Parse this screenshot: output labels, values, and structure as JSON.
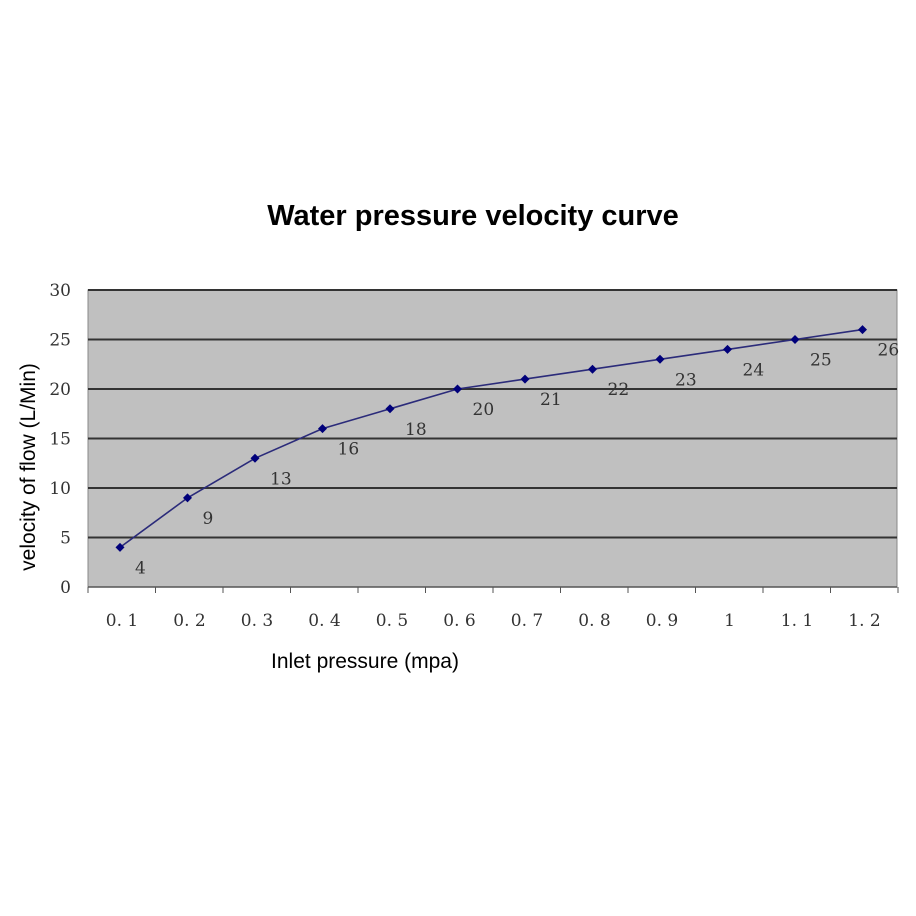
{
  "chart_data": {
    "type": "line",
    "title": "Water pressure velocity curve",
    "xlabel": "Inlet pressure (mpa)",
    "ylabel": "velocity of flow (L/Min)",
    "categories": [
      "0.1",
      "0.2",
      "0.3",
      "0.4",
      "0.5",
      "0.6",
      "0.7",
      "0.8",
      "0.9",
      "1",
      "1.1",
      "1.2"
    ],
    "category_labels": [
      "0. 1",
      "0. 2",
      "0. 3",
      "0. 4",
      "0. 5",
      "0. 6",
      "0. 7",
      "0. 8",
      "0. 9",
      "1",
      "1. 1",
      "1. 2"
    ],
    "series": [
      {
        "values": [
          4,
          9,
          13,
          16,
          18,
          20,
          21,
          22,
          23,
          24,
          25,
          26
        ]
      }
    ],
    "data_labels": [
      "4",
      "9",
      "13",
      "16",
      "18",
      "20",
      "21",
      "22",
      "23",
      "24",
      "25",
      "26"
    ],
    "ylim": [
      0,
      30
    ],
    "yticks": [
      0,
      5,
      10,
      15,
      20,
      25,
      30
    ],
    "grid": true,
    "legend": "none",
    "colors": {
      "plot_background": "#c0c0c0",
      "gridline": "#333333",
      "series_line": "#2b2b7a",
      "marker": "#00007a"
    }
  }
}
